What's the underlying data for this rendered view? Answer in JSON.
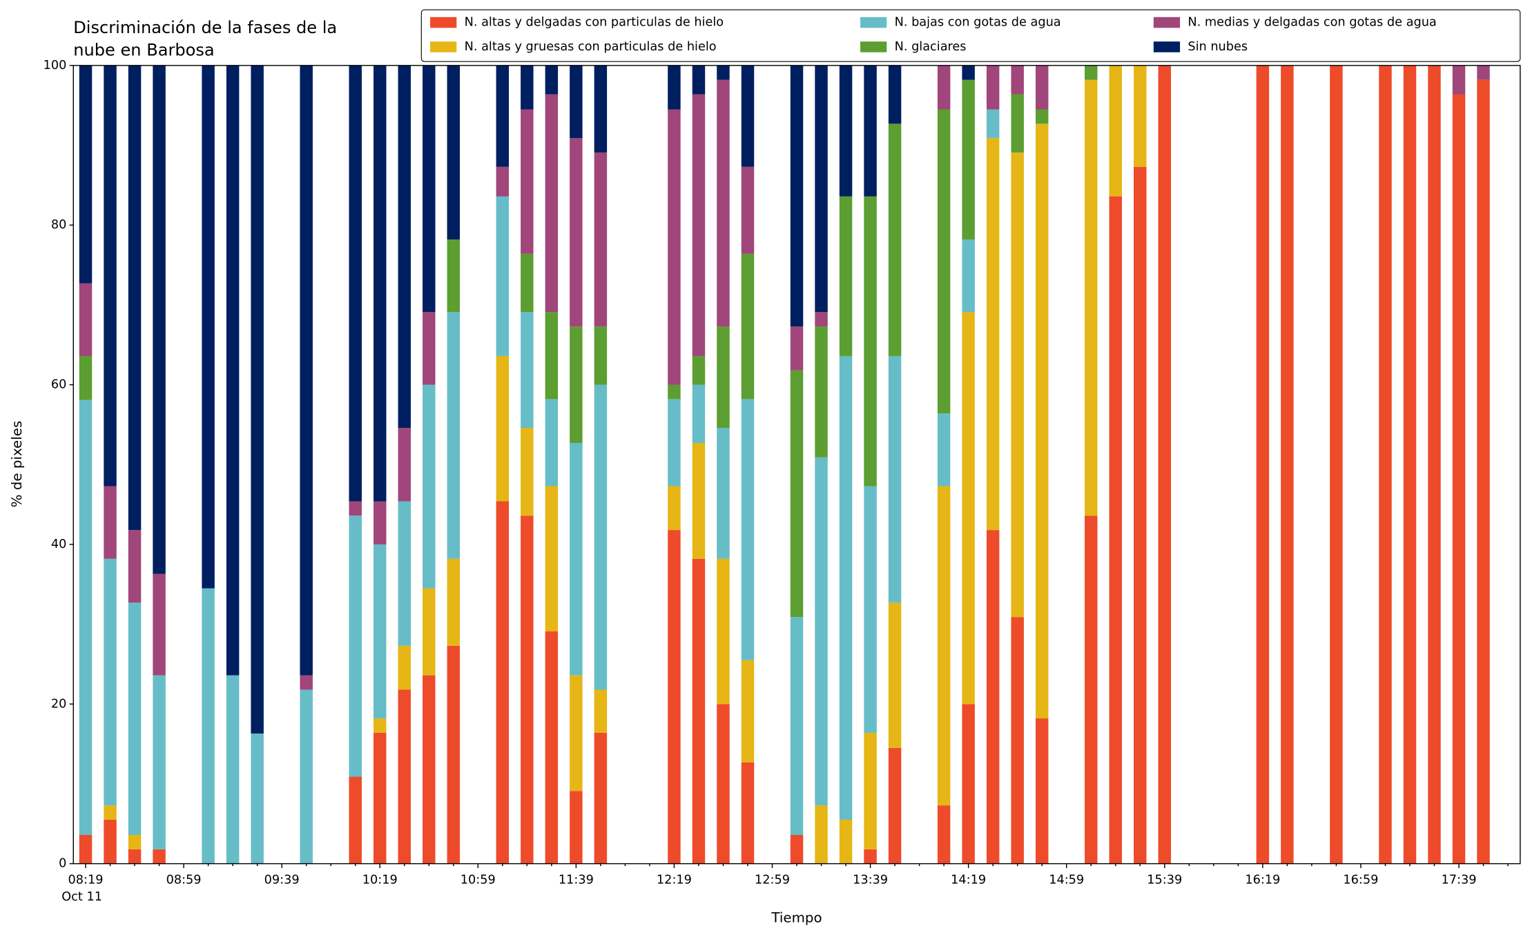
{
  "chart_data": {
    "type": "stacked_bar",
    "title": [
      "Discriminación de la fases de la",
      "nube en Barbosa"
    ],
    "x_label": "Tiempo",
    "y_label": "% de pixeles",
    "date_label": "Oct 11",
    "categories": [
      "08:19",
      null,
      null,
      null,
      "08:59",
      null,
      null,
      null,
      "09:39",
      null,
      null,
      null,
      "10:19",
      null,
      null,
      null,
      "10:59",
      null,
      null,
      null,
      "11:39",
      null,
      null,
      null,
      "12:19",
      null,
      null,
      null,
      "12:59",
      null,
      null,
      null,
      "13:39",
      null,
      null,
      null,
      "14:19",
      null,
      null,
      null,
      "14:59",
      null,
      null,
      null,
      "15:39",
      null,
      null,
      null,
      "16:19",
      null,
      null,
      null,
      "16:59",
      null,
      null,
      null,
      "17:39",
      null,
      null
    ],
    "series": [
      {
        "name": "N. altas y delgadas con particulas de hielo",
        "color": "#ee4b2b",
        "values": [
          3.6,
          5.5,
          1.8,
          1.8,
          null,
          0,
          0,
          0,
          null,
          0,
          null,
          10.9,
          16.4,
          21.8,
          23.6,
          27.3,
          null,
          45.4,
          43.6,
          29.1,
          9.1,
          16.4,
          null,
          null,
          41.8,
          38.2,
          20,
          12.7,
          null,
          3.6,
          0,
          0,
          1.8,
          14.5,
          null,
          7.3,
          20,
          41.8,
          30.9,
          18.2,
          null,
          43.6,
          83.6,
          87.3,
          100,
          null,
          null,
          null,
          100,
          100,
          null,
          100,
          null,
          100,
          100,
          100,
          96.4,
          98.2,
          null
        ]
      },
      {
        "name": "N. altas y gruesas con particulas de hielo",
        "color": "#e5b616",
        "values": [
          0,
          1.8,
          1.8,
          0,
          null,
          0,
          0,
          0,
          null,
          0,
          null,
          0,
          1.8,
          5.5,
          10.9,
          10.9,
          null,
          18.2,
          11,
          18.2,
          14.5,
          5.4,
          null,
          null,
          5.5,
          14.5,
          18.2,
          12.8,
          null,
          0,
          7.3,
          5.5,
          14.6,
          18.2,
          null,
          40,
          49.1,
          49.1,
          58.2,
          74.5,
          null,
          54.6,
          16.4,
          12.7,
          0,
          null,
          null,
          null,
          0,
          0,
          null,
          0,
          null,
          0,
          0,
          0,
          0,
          0,
          null
        ]
      },
      {
        "name": "N. bajas con gotas de agua",
        "color": "#66bdc8",
        "values": [
          54.5,
          30.9,
          29.1,
          21.8,
          null,
          34.5,
          23.6,
          16.3,
          null,
          21.8,
          null,
          32.7,
          21.8,
          18.1,
          25.5,
          30.9,
          null,
          20,
          14.5,
          10.9,
          29.1,
          38.2,
          null,
          null,
          10.9,
          7.3,
          16.4,
          32.7,
          null,
          27.3,
          43.6,
          58.1,
          30.9,
          30.9,
          null,
          9.1,
          9.1,
          3.6,
          0,
          0,
          null,
          0,
          0,
          0,
          0,
          null,
          null,
          null,
          0,
          0,
          null,
          0,
          null,
          0,
          0,
          0,
          0,
          0,
          null
        ]
      },
      {
        "name": "N. glaciares",
        "color": "#5c9e31",
        "values": [
          5.5,
          0,
          0,
          0,
          null,
          0,
          0,
          0,
          null,
          0,
          null,
          0,
          0,
          0,
          0,
          9.1,
          null,
          0,
          7.3,
          10.9,
          14.6,
          7.3,
          null,
          null,
          1.8,
          3.6,
          12.7,
          18.2,
          null,
          30.9,
          16.4,
          20,
          36.3,
          29.1,
          null,
          38.1,
          20,
          0,
          7.3,
          1.8,
          null,
          1.8,
          0,
          0,
          0,
          null,
          null,
          null,
          0,
          0,
          null,
          0,
          null,
          0,
          0,
          0,
          0,
          0,
          null
        ]
      },
      {
        "name": "N. medias y delgadas con gotas de agua",
        "color": "#a0467a",
        "values": [
          9.1,
          9.1,
          9.1,
          12.7,
          null,
          0,
          0,
          0,
          null,
          1.8,
          null,
          1.8,
          5.4,
          9.2,
          9.1,
          0,
          null,
          3.7,
          18.1,
          27.3,
          23.6,
          21.8,
          null,
          null,
          34.5,
          32.8,
          30.9,
          10.9,
          null,
          5.5,
          1.8,
          0,
          0,
          0,
          null,
          5.5,
          0,
          5.5,
          3.6,
          5.5,
          null,
          0,
          0,
          0,
          0,
          null,
          null,
          null,
          0,
          0,
          null,
          0,
          null,
          0,
          0,
          0,
          3.6,
          1.8,
          null
        ]
      },
      {
        "name": "Sin nubes",
        "color": "#001f60",
        "values": [
          27.3,
          52.7,
          58.2,
          63.7,
          null,
          65.5,
          76.4,
          83.7,
          null,
          76.4,
          null,
          54.6,
          54.6,
          45.4,
          30.9,
          21.8,
          null,
          12.7,
          5.5,
          3.6,
          9.1,
          10.9,
          null,
          null,
          5.5,
          3.6,
          1.8,
          12.7,
          null,
          32.7,
          30.9,
          16.4,
          16.4,
          7.3,
          null,
          0,
          1.8,
          0,
          0,
          0,
          null,
          0,
          0,
          0,
          0,
          null,
          null,
          null,
          0,
          0,
          null,
          0,
          null,
          0,
          0,
          0,
          0,
          0,
          null
        ]
      }
    ],
    "ylim": [
      0,
      100
    ],
    "yticks": [
      0,
      20,
      40,
      60,
      80,
      100
    ],
    "legend": "top-right"
  }
}
